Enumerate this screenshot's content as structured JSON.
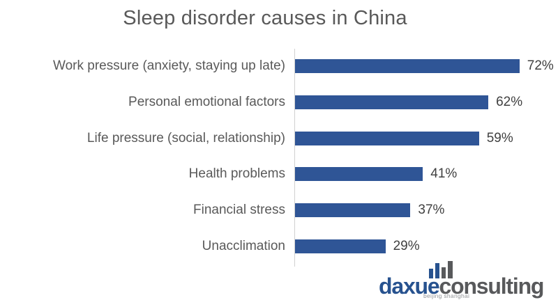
{
  "chart_data": {
    "type": "bar",
    "orientation": "horizontal",
    "title": "Sleep disorder causes in China",
    "categories": [
      "Work pressure (anxiety, staying up late)",
      "Personal emotional factors",
      "Life pressure (social, relationship)",
      "Health problems",
      "Financial stress",
      "Unacclimation"
    ],
    "values": [
      72,
      62,
      59,
      41,
      37,
      29
    ],
    "value_labels": [
      "72%",
      "62%",
      "59%",
      "41%",
      "37%",
      "29%"
    ],
    "unit": "%",
    "xlabel": "",
    "ylabel": "",
    "xlim": [
      0,
      100
    ],
    "grid": false,
    "legend": false,
    "value_labels_shown": true,
    "axis": "single vertical baseline on left of bars, no ticks"
  },
  "colors": {
    "bar_color": "#2f5596",
    "axis_color": "#d0d0d0",
    "text_gray": "#595959",
    "value_color": "#404040",
    "brand_blue": "#27528f",
    "brand_gray": "#58595b",
    "tagline_gray": "#939598",
    "background": "#ffffff"
  },
  "logo": {
    "brand_primary": "daxue",
    "brand_secondary": "consulting",
    "tagline": "beijing shanghai",
    "icon": "bar-chart-icon"
  }
}
